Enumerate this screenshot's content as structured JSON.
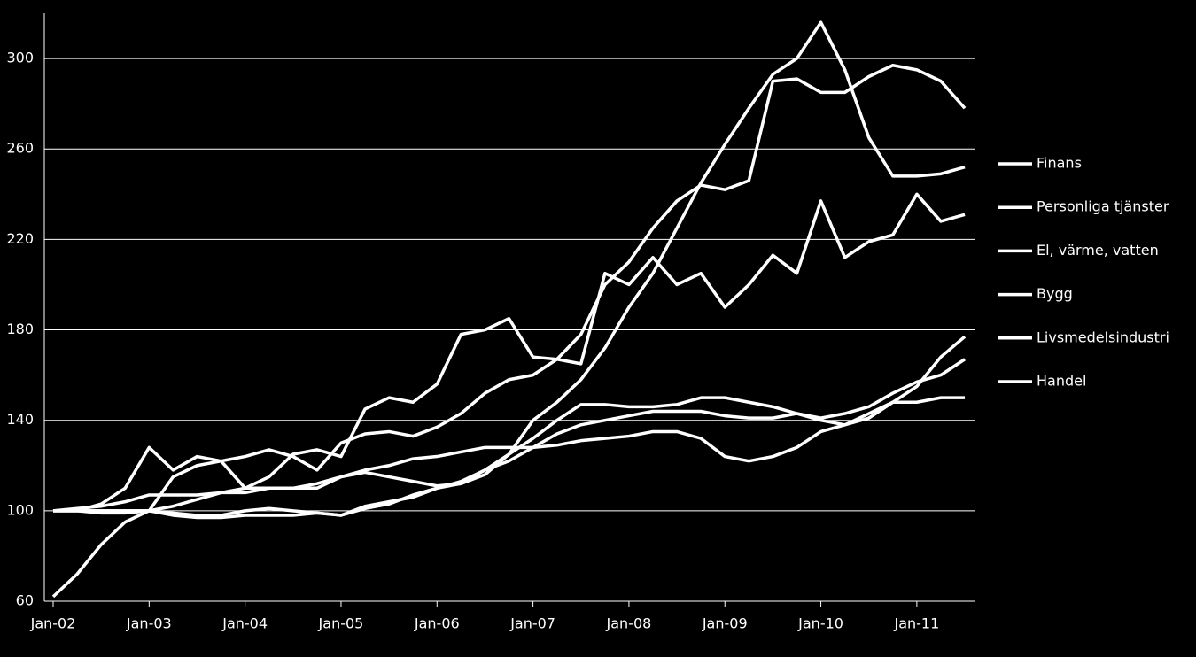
{
  "chart_data": {
    "type": "line",
    "categories": [
      "Jan-02",
      null,
      null,
      null,
      "Jan-03",
      null,
      null,
      null,
      "Jan-04",
      null,
      null,
      null,
      "Jan-05",
      null,
      null,
      null,
      "Jan-06",
      null,
      null,
      null,
      "Jan-07",
      null,
      null,
      null,
      "Jan-08",
      null,
      null,
      null,
      "Jan-09",
      null,
      null,
      null,
      "Jan-10",
      null,
      null,
      null,
      "Jan-11",
      null,
      null
    ],
    "series": [
      {
        "name": "Finans",
        "color": "#ffffff",
        "values": [
          100,
          100,
          103,
          110,
          128,
          118,
          124,
          122,
          110,
          115,
          125,
          127,
          124,
          145,
          150,
          148,
          156,
          178,
          180,
          185,
          168,
          167,
          165,
          205,
          200,
          212,
          200,
          205,
          190,
          200,
          213,
          205,
          237,
          212,
          219,
          222,
          240,
          228,
          231
        ]
      },
      {
        "name": "Personliga tjänster",
        "color": "#ffffff",
        "values": [
          62,
          72,
          85,
          95,
          100,
          115,
          120,
          122,
          124,
          127,
          124,
          118,
          130,
          134,
          135,
          133,
          137,
          143,
          152,
          158,
          160,
          167,
          178,
          200,
          210,
          225,
          237,
          244,
          242,
          246,
          290,
          291,
          285,
          285,
          292,
          297,
          295,
          290,
          278
        ]
      },
      {
        "name": "El, värme, vatten",
        "color": "#ffffff",
        "values": [
          100,
          100,
          100,
          100,
          100,
          98,
          97,
          97,
          98,
          98,
          98,
          99,
          98,
          101,
          103,
          107,
          110,
          112,
          118,
          125,
          140,
          148,
          158,
          172,
          190,
          205,
          225,
          245,
          262,
          278,
          293,
          300,
          316,
          295,
          265,
          248,
          248,
          249,
          252
        ]
      },
      {
        "name": "Bygg",
        "color": "#ffffff",
        "values": [
          100,
          101,
          102,
          104,
          107,
          107,
          107,
          108,
          110,
          110,
          110,
          112,
          115,
          117,
          115,
          113,
          111,
          112,
          116,
          125,
          132,
          140,
          147,
          147,
          146,
          146,
          147,
          150,
          150,
          148,
          146,
          143,
          141,
          143,
          146,
          152,
          157,
          160,
          167
        ]
      },
      {
        "name": "Livsmedelsindustri",
        "color": "#ffffff",
        "values": [
          100,
          100,
          99,
          99,
          100,
          99,
          98,
          98,
          100,
          101,
          100,
          99,
          98,
          102,
          104,
          106,
          110,
          113,
          118,
          122,
          128,
          134,
          138,
          140,
          142,
          144,
          144,
          144,
          142,
          141,
          141,
          143,
          140,
          138,
          141,
          148,
          155,
          168,
          177
        ]
      },
      {
        "name": "Handel",
        "color": "#ffffff",
        "values": [
          100,
          100,
          100,
          100,
          100,
          102,
          105,
          108,
          108,
          110,
          110,
          110,
          115,
          118,
          120,
          123,
          124,
          126,
          128,
          128,
          128,
          129,
          131,
          132,
          133,
          135,
          135,
          132,
          124,
          122,
          124,
          128,
          135,
          138,
          143,
          148,
          148,
          150,
          150
        ]
      }
    ],
    "ylim": [
      60,
      320
    ],
    "yticks": [
      60,
      100,
      140,
      180,
      220,
      260,
      300
    ],
    "grid": true,
    "legend": "right"
  }
}
